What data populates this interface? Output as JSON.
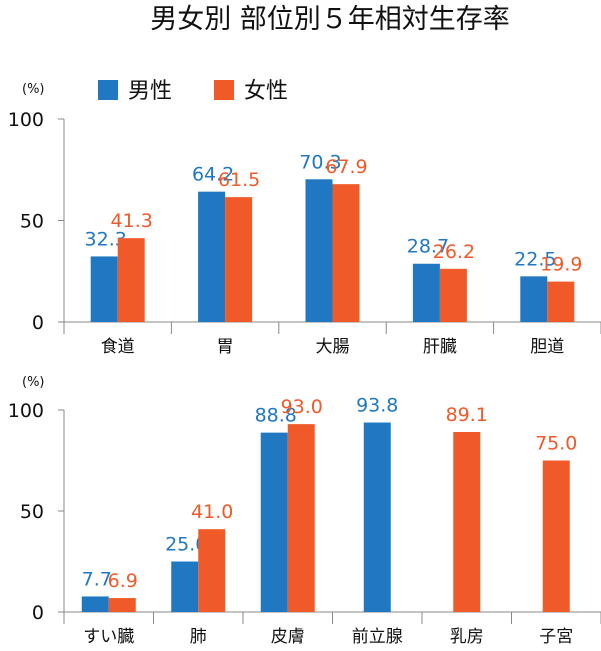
{
  "title": "男女別 部位別５年相対生存率",
  "legend": [
    {
      "name": "男性",
      "color": "#1f78c1"
    },
    {
      "name": "女性",
      "color": "#f05a28"
    }
  ],
  "chart_data": [
    {
      "type": "bar",
      "title": "男女別 部位別５年相対生存率",
      "ylabel": "(%)",
      "ylim": [
        0,
        100
      ],
      "yticks": [
        "0",
        "50",
        "100"
      ],
      "categories": [
        "食道",
        "胃",
        "大腸",
        "肝臓",
        "胆道"
      ],
      "series": [
        {
          "name": "男性",
          "color": "#1f78c1",
          "values": [
            32.3,
            64.2,
            70.3,
            28.7,
            22.5
          ]
        },
        {
          "name": "女性",
          "color": "#f05a28",
          "values": [
            41.3,
            61.5,
            67.9,
            26.2,
            19.9
          ]
        }
      ],
      "legend_position": "top-left",
      "grid": false
    },
    {
      "type": "bar",
      "ylabel": "(%)",
      "ylim": [
        0,
        100
      ],
      "yticks": [
        "0",
        "50",
        "100"
      ],
      "categories": [
        "すい臓",
        "肺",
        "皮膚",
        "前立腺",
        "乳房",
        "子宮"
      ],
      "series": [
        {
          "name": "男性",
          "color": "#1f78c1",
          "values": [
            7.7,
            25.0,
            88.8,
            93.8,
            null,
            null
          ]
        },
        {
          "name": "女性",
          "color": "#f05a28",
          "values": [
            6.9,
            41.0,
            93.0,
            null,
            89.1,
            75.0
          ]
        }
      ],
      "grid": false
    }
  ]
}
